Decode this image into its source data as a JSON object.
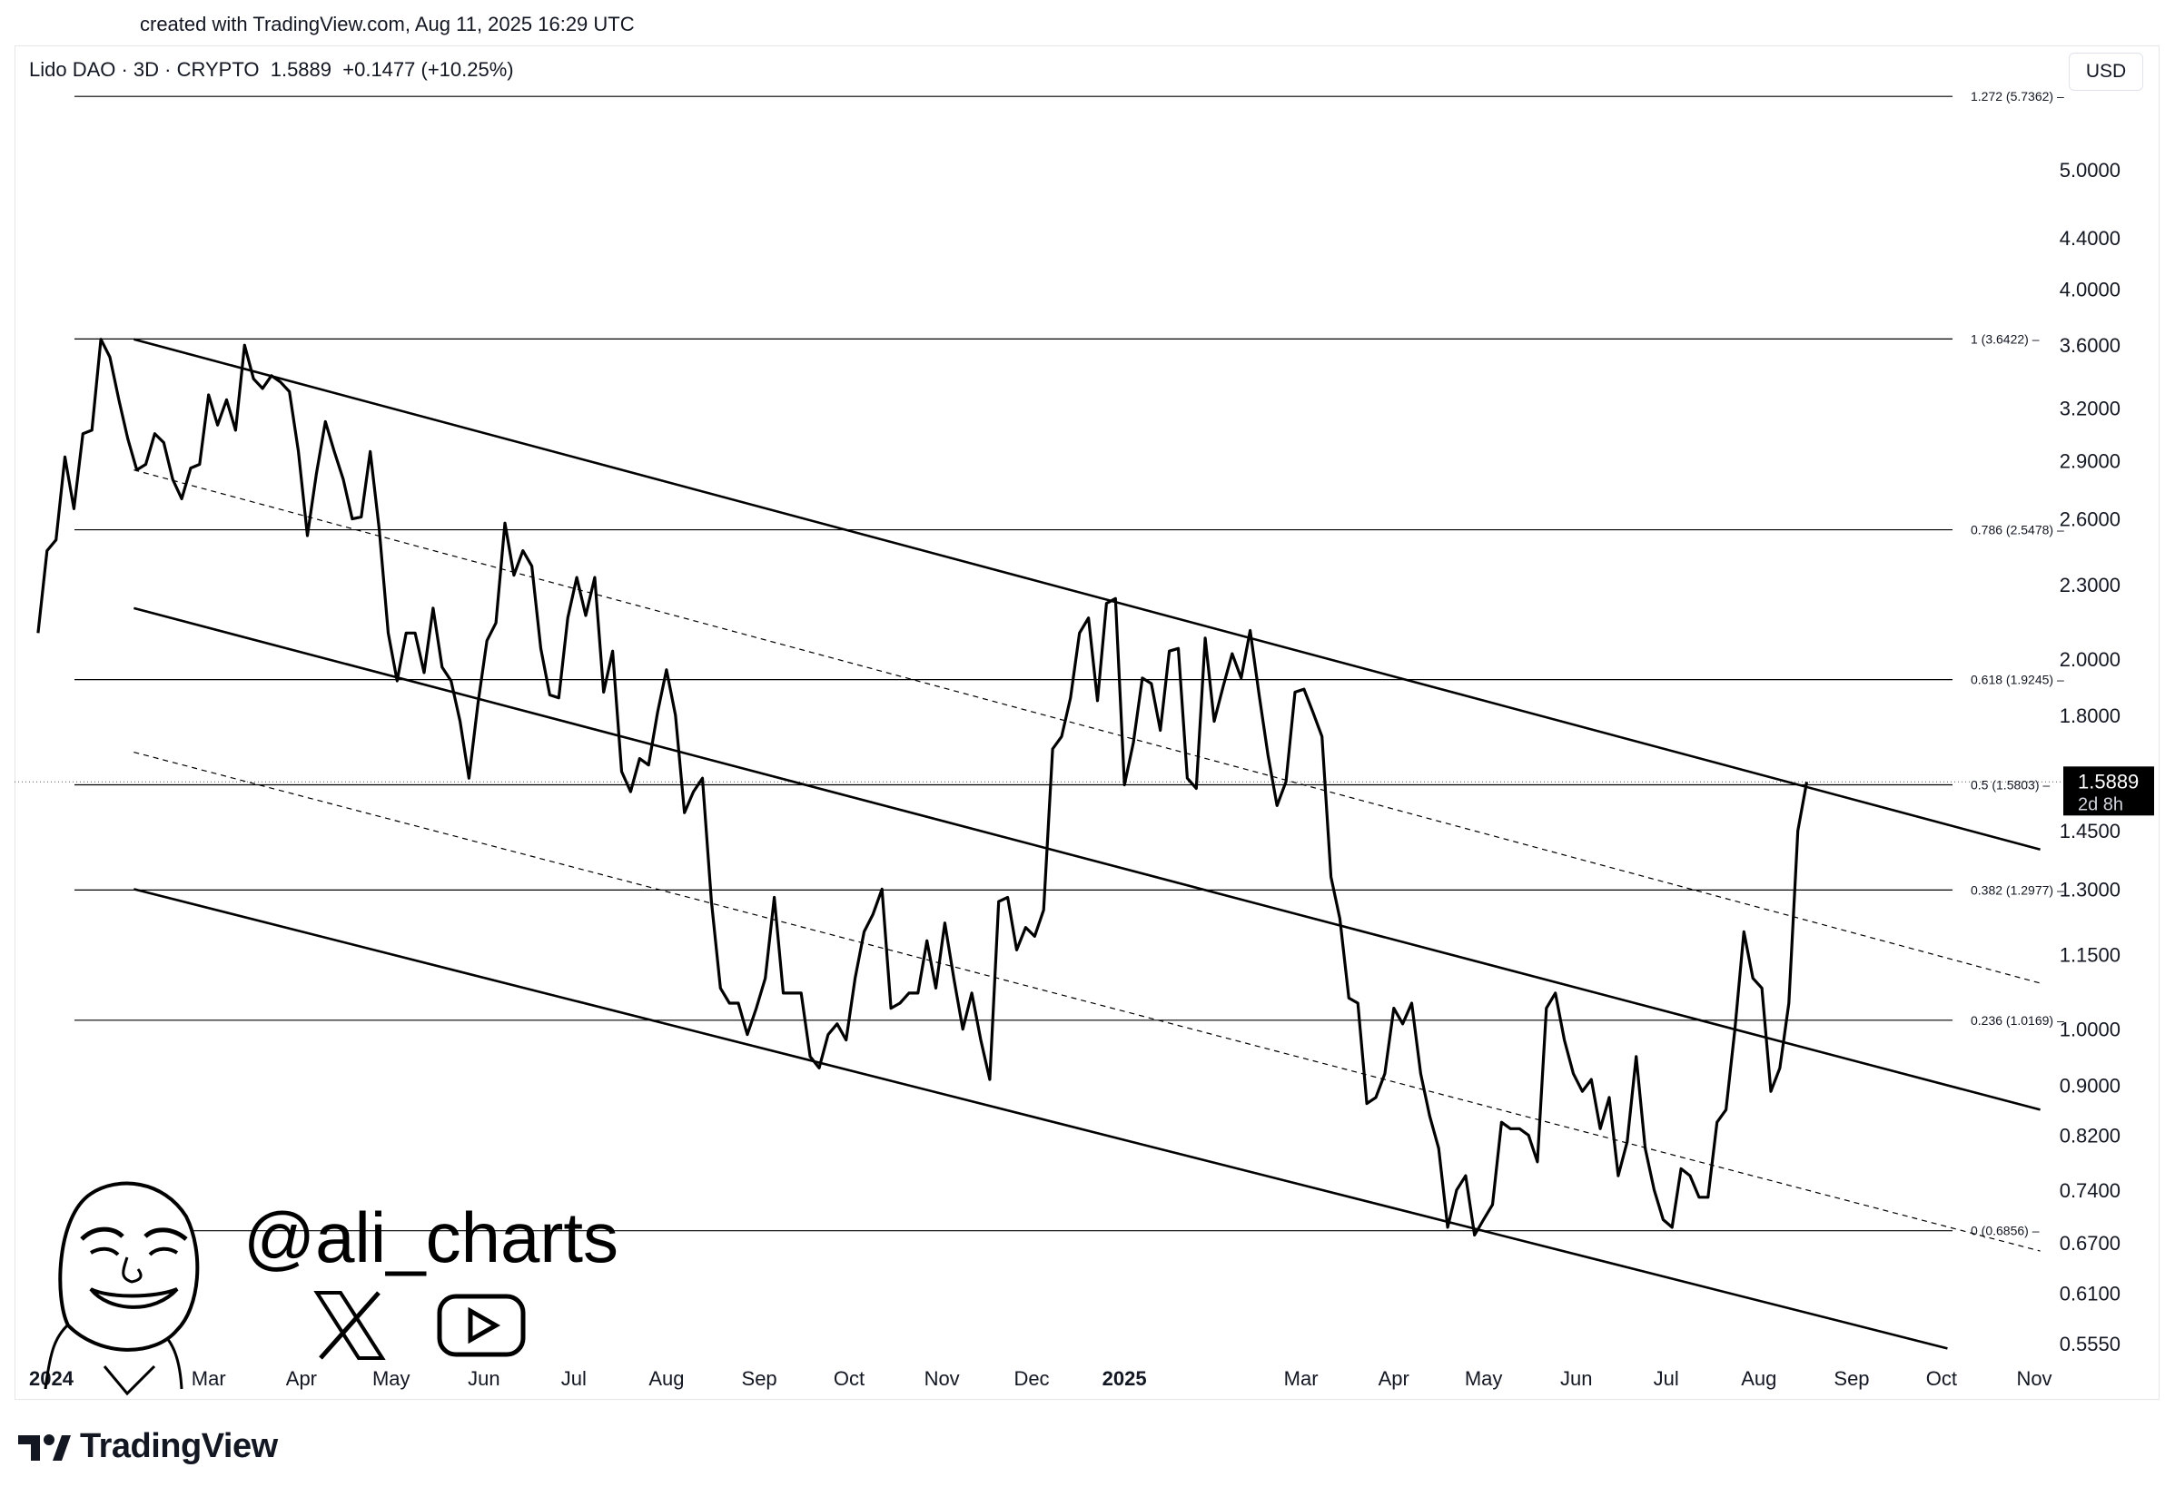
{
  "caption": "created with TradingView.com, Aug 11, 2025 16:29 UTC",
  "header": {
    "symbol": "Lido DAO · 3D · CRYPTO",
    "price": "1.5889",
    "change": "+0.1477 (+10.25%)",
    "currency": "USD"
  },
  "price_label": {
    "value": "1.5889",
    "countdown": "2d 8h"
  },
  "watermark": {
    "handle": "@ali_charts",
    "x_icon": "x-logo-icon",
    "youtube_icon": "youtube-icon"
  },
  "brand": {
    "name": "TradingView",
    "logo_icon": "tradingview-logo-icon"
  },
  "colors": {
    "line": "#000000",
    "grid": "#d1d4dc",
    "label_bg": "#000000"
  },
  "chart_data": {
    "type": "line",
    "scale": "log",
    "y_axis_ticks": [
      "5.0000",
      "4.4000",
      "4.0000",
      "3.6000",
      "3.2000",
      "2.9000",
      "2.6000",
      "2.3000",
      "2.0000",
      "1.8000",
      "1.4500",
      "1.3000",
      "1.1500",
      "1.0000",
      "0.9000",
      "0.8200",
      "0.7400",
      "0.6700",
      "0.6100",
      "0.5550"
    ],
    "x_axis_ticks": [
      {
        "label": "2024",
        "date": "2024-01-01",
        "bold": true
      },
      {
        "label": "Mar",
        "date": "2024-03-01"
      },
      {
        "label": "Apr",
        "date": "2024-04-01"
      },
      {
        "label": "May",
        "date": "2024-05-01"
      },
      {
        "label": "Jun",
        "date": "2024-06-01"
      },
      {
        "label": "Jul",
        "date": "2024-07-01"
      },
      {
        "label": "Aug",
        "date": "2024-08-01"
      },
      {
        "label": "Sep",
        "date": "2024-09-01"
      },
      {
        "label": "Oct",
        "date": "2024-10-01"
      },
      {
        "label": "Nov",
        "date": "2024-11-01"
      },
      {
        "label": "Dec",
        "date": "2024-12-01"
      },
      {
        "label": "2025",
        "date": "2025-01-01",
        "bold": true
      },
      {
        "label": "Mar",
        "date": "2025-03-01"
      },
      {
        "label": "Apr",
        "date": "2025-04-01"
      },
      {
        "label": "May",
        "date": "2025-05-01"
      },
      {
        "label": "Jun",
        "date": "2025-06-01"
      },
      {
        "label": "Jul",
        "date": "2025-07-01"
      },
      {
        "label": "Aug",
        "date": "2025-08-01"
      },
      {
        "label": "Sep",
        "date": "2025-09-01"
      },
      {
        "label": "Oct",
        "date": "2025-10-01"
      },
      {
        "label": "Nov",
        "date": "2025-11-01"
      }
    ],
    "fib_levels": [
      {
        "label": "1.272 (5.7362)",
        "ratio": 1.272,
        "value": 5.7362
      },
      {
        "label": "1 (3.6422)",
        "ratio": 1,
        "value": 3.6422
      },
      {
        "label": "0.786 (2.5478)",
        "ratio": 0.786,
        "value": 2.5478
      },
      {
        "label": "0.618 (1.9245)",
        "ratio": 0.618,
        "value": 1.9245
      },
      {
        "label": "0.5 (1.5803)",
        "ratio": 0.5,
        "value": 1.5803
      },
      {
        "label": "0.382 (1.2977)",
        "ratio": 0.382,
        "value": 1.2977
      },
      {
        "label": "0.236 (1.0169)",
        "ratio": 0.236,
        "value": 1.0169
      },
      {
        "label": "0 (0.6856)",
        "ratio": 0,
        "value": 0.6856
      }
    ],
    "channel_lines": [
      {
        "style": "solid",
        "points": [
          [
            "2024-02-05",
            3.64
          ],
          [
            "2025-11-03",
            1.4
          ]
        ]
      },
      {
        "style": "solid",
        "points": [
          [
            "2024-02-05",
            2.2
          ],
          [
            "2025-11-03",
            0.86
          ]
        ]
      },
      {
        "style": "solid",
        "points": [
          [
            "2024-02-05",
            1.3
          ],
          [
            "2025-10-03",
            0.55
          ]
        ]
      },
      {
        "style": "dashed",
        "points": [
          [
            "2024-02-05",
            2.85
          ],
          [
            "2025-11-03",
            1.09
          ]
        ]
      },
      {
        "style": "dashed",
        "points": [
          [
            "2024-02-05",
            1.68
          ],
          [
            "2025-11-03",
            0.66
          ]
        ]
      }
    ],
    "series": [
      {
        "points": [
          [
            "2024-01-04",
            2.1
          ],
          [
            "2024-01-07",
            2.45
          ],
          [
            "2024-01-10",
            2.5
          ],
          [
            "2024-01-13",
            2.92
          ],
          [
            "2024-01-16",
            2.65
          ],
          [
            "2024-01-19",
            3.05
          ],
          [
            "2024-01-22",
            3.07
          ],
          [
            "2024-01-25",
            3.64
          ],
          [
            "2024-01-28",
            3.52
          ],
          [
            "2024-01-31",
            3.25
          ],
          [
            "2024-02-03",
            3.02
          ],
          [
            "2024-02-06",
            2.85
          ],
          [
            "2024-02-09",
            2.88
          ],
          [
            "2024-02-12",
            3.05
          ],
          [
            "2024-02-15",
            3.0
          ],
          [
            "2024-02-18",
            2.8
          ],
          [
            "2024-02-21",
            2.7
          ],
          [
            "2024-02-24",
            2.86
          ],
          [
            "2024-02-27",
            2.88
          ],
          [
            "2024-03-01",
            3.28
          ],
          [
            "2024-03-04",
            3.1
          ],
          [
            "2024-03-07",
            3.25
          ],
          [
            "2024-03-10",
            3.07
          ],
          [
            "2024-03-13",
            3.6
          ],
          [
            "2024-03-16",
            3.38
          ],
          [
            "2024-03-19",
            3.32
          ],
          [
            "2024-03-22",
            3.4
          ],
          [
            "2024-03-25",
            3.36
          ],
          [
            "2024-03-28",
            3.3
          ],
          [
            "2024-03-31",
            2.95
          ],
          [
            "2024-04-03",
            2.52
          ],
          [
            "2024-04-06",
            2.83
          ],
          [
            "2024-04-09",
            3.12
          ],
          [
            "2024-04-12",
            2.95
          ],
          [
            "2024-04-15",
            2.8
          ],
          [
            "2024-04-18",
            2.6
          ],
          [
            "2024-04-21",
            2.61
          ],
          [
            "2024-04-24",
            2.95
          ],
          [
            "2024-04-27",
            2.55
          ],
          [
            "2024-04-30",
            2.1
          ],
          [
            "2024-05-03",
            1.92
          ],
          [
            "2024-05-06",
            2.1
          ],
          [
            "2024-05-09",
            2.1
          ],
          [
            "2024-05-12",
            1.95
          ],
          [
            "2024-05-15",
            2.2
          ],
          [
            "2024-05-18",
            1.97
          ],
          [
            "2024-05-21",
            1.92
          ],
          [
            "2024-05-24",
            1.78
          ],
          [
            "2024-05-27",
            1.6
          ],
          [
            "2024-05-30",
            1.84
          ],
          [
            "2024-06-02",
            2.07
          ],
          [
            "2024-06-05",
            2.14
          ],
          [
            "2024-06-08",
            2.58
          ],
          [
            "2024-06-11",
            2.34
          ],
          [
            "2024-06-14",
            2.45
          ],
          [
            "2024-06-17",
            2.38
          ],
          [
            "2024-06-20",
            2.04
          ],
          [
            "2024-06-23",
            1.87
          ],
          [
            "2024-06-26",
            1.86
          ],
          [
            "2024-06-29",
            2.16
          ],
          [
            "2024-07-02",
            2.33
          ],
          [
            "2024-07-05",
            2.17
          ],
          [
            "2024-07-08",
            2.33
          ],
          [
            "2024-07-11",
            1.88
          ],
          [
            "2024-07-14",
            2.03
          ],
          [
            "2024-07-17",
            1.62
          ],
          [
            "2024-07-20",
            1.56
          ],
          [
            "2024-07-23",
            1.66
          ],
          [
            "2024-07-26",
            1.64
          ],
          [
            "2024-07-29",
            1.81
          ],
          [
            "2024-08-01",
            1.96
          ],
          [
            "2024-08-04",
            1.8
          ],
          [
            "2024-08-07",
            1.5
          ],
          [
            "2024-08-10",
            1.56
          ],
          [
            "2024-08-13",
            1.6
          ],
          [
            "2024-08-16",
            1.27
          ],
          [
            "2024-08-19",
            1.08
          ],
          [
            "2024-08-22",
            1.05
          ],
          [
            "2024-08-25",
            1.05
          ],
          [
            "2024-08-28",
            0.99
          ],
          [
            "2024-08-31",
            1.04
          ],
          [
            "2024-09-03",
            1.1
          ],
          [
            "2024-09-06",
            1.28
          ],
          [
            "2024-09-09",
            1.07
          ],
          [
            "2024-09-12",
            1.07
          ],
          [
            "2024-09-15",
            1.07
          ],
          [
            "2024-09-18",
            0.95
          ],
          [
            "2024-09-21",
            0.93
          ],
          [
            "2024-09-24",
            0.99
          ],
          [
            "2024-09-27",
            1.01
          ],
          [
            "2024-09-30",
            0.98
          ],
          [
            "2024-10-03",
            1.1
          ],
          [
            "2024-10-06",
            1.2
          ],
          [
            "2024-10-09",
            1.24
          ],
          [
            "2024-10-12",
            1.3
          ],
          [
            "2024-10-15",
            1.04
          ],
          [
            "2024-10-18",
            1.05
          ],
          [
            "2024-10-21",
            1.07
          ],
          [
            "2024-10-24",
            1.07
          ],
          [
            "2024-10-27",
            1.18
          ],
          [
            "2024-10-30",
            1.08
          ],
          [
            "2024-11-02",
            1.22
          ],
          [
            "2024-11-05",
            1.1
          ],
          [
            "2024-11-08",
            1.0
          ],
          [
            "2024-11-11",
            1.07
          ],
          [
            "2024-11-14",
            0.98
          ],
          [
            "2024-11-17",
            0.91
          ],
          [
            "2024-11-20",
            1.27
          ],
          [
            "2024-11-23",
            1.28
          ],
          [
            "2024-11-26",
            1.16
          ],
          [
            "2024-11-29",
            1.21
          ],
          [
            "2024-12-02",
            1.19
          ],
          [
            "2024-12-05",
            1.25
          ],
          [
            "2024-12-08",
            1.69
          ],
          [
            "2024-12-11",
            1.73
          ],
          [
            "2024-12-14",
            1.86
          ],
          [
            "2024-12-17",
            2.1
          ],
          [
            "2024-12-20",
            2.16
          ],
          [
            "2024-12-23",
            1.85
          ],
          [
            "2024-12-26",
            2.22
          ],
          [
            "2024-12-29",
            2.24
          ],
          [
            "2025-01-01",
            1.58
          ],
          [
            "2025-01-04",
            1.71
          ],
          [
            "2025-01-07",
            1.93
          ],
          [
            "2025-01-10",
            1.91
          ],
          [
            "2025-01-13",
            1.75
          ],
          [
            "2025-01-16",
            2.03
          ],
          [
            "2025-01-19",
            2.04
          ],
          [
            "2025-01-22",
            1.6
          ],
          [
            "2025-01-25",
            1.57
          ],
          [
            "2025-01-28",
            2.08
          ],
          [
            "2025-01-31",
            1.78
          ],
          [
            "2025-02-03",
            1.9
          ],
          [
            "2025-02-06",
            2.02
          ],
          [
            "2025-02-09",
            1.93
          ],
          [
            "2025-02-12",
            2.11
          ],
          [
            "2025-02-15",
            1.87
          ],
          [
            "2025-02-18",
            1.67
          ],
          [
            "2025-02-21",
            1.52
          ],
          [
            "2025-02-24",
            1.59
          ],
          [
            "2025-02-27",
            1.88
          ],
          [
            "2025-03-02",
            1.89
          ],
          [
            "2025-03-05",
            1.81
          ],
          [
            "2025-03-08",
            1.73
          ],
          [
            "2025-03-11",
            1.33
          ],
          [
            "2025-03-14",
            1.23
          ],
          [
            "2025-03-17",
            1.06
          ],
          [
            "2025-03-20",
            1.05
          ],
          [
            "2025-03-23",
            0.87
          ],
          [
            "2025-03-26",
            0.88
          ],
          [
            "2025-03-29",
            0.92
          ],
          [
            "2025-04-01",
            1.04
          ],
          [
            "2025-04-04",
            1.01
          ],
          [
            "2025-04-07",
            1.05
          ],
          [
            "2025-04-10",
            0.92
          ],
          [
            "2025-04-13",
            0.85
          ],
          [
            "2025-04-16",
            0.8
          ],
          [
            "2025-04-19",
            0.69
          ],
          [
            "2025-04-22",
            0.74
          ],
          [
            "2025-04-25",
            0.76
          ],
          [
            "2025-04-28",
            0.68
          ],
          [
            "2025-05-01",
            0.7
          ],
          [
            "2025-05-04",
            0.72
          ],
          [
            "2025-05-07",
            0.84
          ],
          [
            "2025-05-10",
            0.83
          ],
          [
            "2025-05-13",
            0.83
          ],
          [
            "2025-05-16",
            0.82
          ],
          [
            "2025-05-19",
            0.78
          ],
          [
            "2025-05-22",
            1.04
          ],
          [
            "2025-05-25",
            1.07
          ],
          [
            "2025-05-28",
            0.98
          ],
          [
            "2025-05-31",
            0.92
          ],
          [
            "2025-06-03",
            0.89
          ],
          [
            "2025-06-06",
            0.91
          ],
          [
            "2025-06-09",
            0.83
          ],
          [
            "2025-06-12",
            0.88
          ],
          [
            "2025-06-15",
            0.76
          ],
          [
            "2025-06-18",
            0.81
          ],
          [
            "2025-06-21",
            0.95
          ],
          [
            "2025-06-24",
            0.8
          ],
          [
            "2025-06-27",
            0.74
          ],
          [
            "2025-06-30",
            0.7
          ],
          [
            "2025-07-03",
            0.69
          ],
          [
            "2025-07-06",
            0.77
          ],
          [
            "2025-07-09",
            0.76
          ],
          [
            "2025-07-12",
            0.73
          ],
          [
            "2025-07-15",
            0.73
          ],
          [
            "2025-07-18",
            0.84
          ],
          [
            "2025-07-21",
            0.86
          ],
          [
            "2025-07-24",
            1.0
          ],
          [
            "2025-07-27",
            1.2
          ],
          [
            "2025-07-30",
            1.1
          ],
          [
            "2025-08-02",
            1.08
          ],
          [
            "2025-08-05",
            0.89
          ],
          [
            "2025-08-08",
            0.93
          ],
          [
            "2025-08-11",
            1.05
          ],
          [
            "2025-08-14",
            1.45
          ],
          [
            "2025-08-17",
            1.5889
          ]
        ]
      }
    ]
  }
}
